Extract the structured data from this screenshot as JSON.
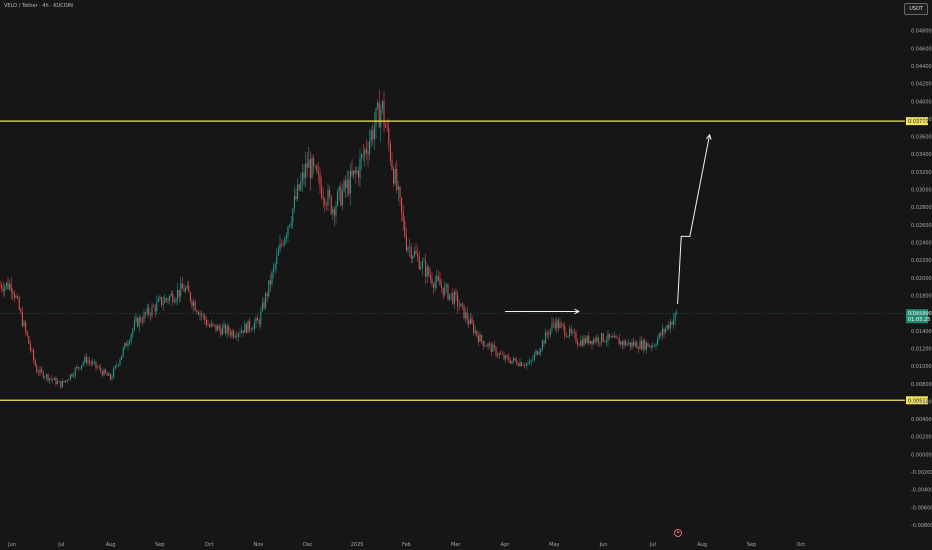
{
  "header": {
    "title": "VELO / Tether · 4h · KUCOIN",
    "currency": "USDT"
  },
  "icons": {
    "event_flag": "flag-icon"
  },
  "colors": {
    "background": "#161616",
    "up": "#26a69a",
    "down": "#ef5350",
    "level": "#f2e45c",
    "arrow": "#f2f2f2",
    "current": "#1f8a70"
  },
  "chart_data": {
    "type": "candlestick",
    "title": "VELO / Tether · 4h · KUCOIN",
    "ylabel": "USDT",
    "ylim": [
      -0.008,
      0.05
    ],
    "y_ticks": [
      "0.048000",
      "0.046000",
      "0.044000",
      "0.042000",
      "0.040000",
      "0.038000",
      "0.036000",
      "0.034000",
      "0.032000",
      "0.030000",
      "0.028000",
      "0.026000",
      "0.024000",
      "0.022000",
      "0.020000",
      "0.018000",
      "0.016000",
      "0.014000",
      "0.012000",
      "0.010000",
      "0.008000",
      "0.006000",
      "0.004000",
      "0.002000",
      "0.000000",
      "-0.002000",
      "-0.004000",
      "-0.006000",
      "-0.008000"
    ],
    "x_ticks": [
      "Jun",
      "Jul",
      "Aug",
      "Sep",
      "Oct",
      "Nov",
      "Dec",
      "2025",
      "Feb",
      "Mar",
      "Apr",
      "May",
      "Jun",
      "Jul",
      "Aug",
      "Sep",
      "Oct"
    ],
    "price_path": [
      {
        "t": "Jun",
        "v": 0.0192
      },
      {
        "t": "Jul",
        "v": 0.0095
      },
      {
        "t": "Jul+",
        "v": 0.0079
      },
      {
        "t": "Aug",
        "v": 0.0108
      },
      {
        "t": "Aug+",
        "v": 0.0086
      },
      {
        "t": "Sep",
        "v": 0.0148
      },
      {
        "t": "Sep+",
        "v": 0.0172
      },
      {
        "t": "Oct",
        "v": 0.0188
      },
      {
        "t": "Oct+",
        "v": 0.0145
      },
      {
        "t": "Nov",
        "v": 0.0138
      },
      {
        "t": "Nov+",
        "v": 0.015
      },
      {
        "t": "Dec",
        "v": 0.0245
      },
      {
        "t": "Dec+",
        "v": 0.033
      },
      {
        "t": "Dec++",
        "v": 0.028
      },
      {
        "t": "2025",
        "v": 0.032
      },
      {
        "t": "2025+",
        "v": 0.0395
      },
      {
        "t": "Feb",
        "v": 0.024
      },
      {
        "t": "Feb+",
        "v": 0.02
      },
      {
        "t": "Mar",
        "v": 0.0175
      },
      {
        "t": "Mar+",
        "v": 0.013
      },
      {
        "t": "Apr",
        "v": 0.0108
      },
      {
        "t": "Apr+",
        "v": 0.0102
      },
      {
        "t": "May",
        "v": 0.015
      },
      {
        "t": "May+",
        "v": 0.0128
      },
      {
        "t": "Jun",
        "v": 0.0132
      },
      {
        "t": "Jun+",
        "v": 0.0125
      },
      {
        "t": "Jul",
        "v": 0.0124
      },
      {
        "t": "Jul+",
        "v": 0.016
      }
    ],
    "levels": [
      {
        "name": "resistance",
        "value": 0.03775,
        "label": "0.037754"
      },
      {
        "name": "support",
        "value": 0.006128,
        "label": "0.006128"
      }
    ],
    "current_price": {
      "value": 0.01599,
      "label": "0.015990",
      "countdown": "01:05:25"
    },
    "annotations": [
      {
        "type": "arrow",
        "from": {
          "t": "Apr+",
          "v": 0.01619
        },
        "to": {
          "t": "May+",
          "v": 0.01619
        }
      },
      {
        "type": "arrow",
        "path": [
          {
            "t": "Jul+",
            "v": 0.01705
          },
          {
            "t": "Jul++",
            "v": 0.0247
          },
          {
            "t": "Jul+++",
            "v": 0.0247
          },
          {
            "t": "Aug",
            "v": 0.0362
          }
        ]
      }
    ],
    "grid": false,
    "legend": "none"
  }
}
